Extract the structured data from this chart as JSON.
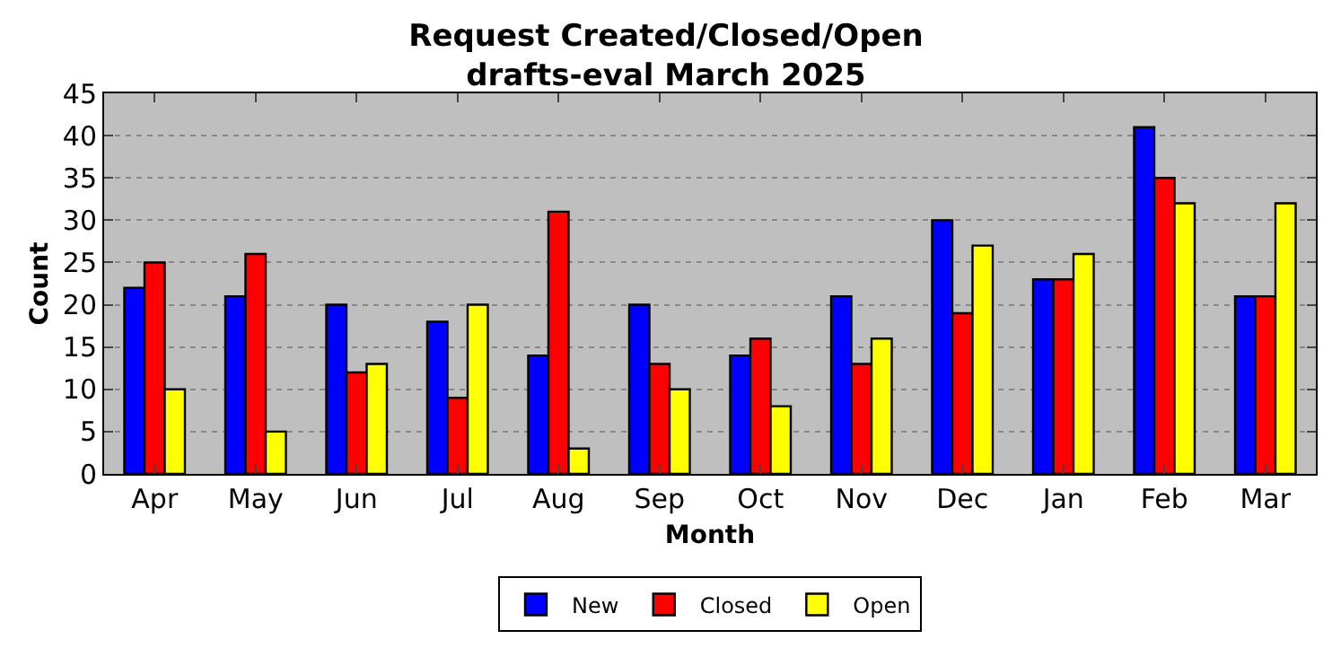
{
  "chart_data": {
    "type": "bar",
    "title": "Request Created/Closed/Open\ndrafts-eval March 2025",
    "xlabel": "Month",
    "ylabel": "Count",
    "categories": [
      "Apr",
      "May",
      "Jun",
      "Jul",
      "Aug",
      "Sep",
      "Oct",
      "Nov",
      "Dec",
      "Jan",
      "Feb",
      "Mar"
    ],
    "series": [
      {
        "name": "New",
        "color": "#0000ff",
        "values": [
          22,
          21,
          20,
          18,
          14,
          20,
          14,
          21,
          30,
          23,
          41,
          21
        ]
      },
      {
        "name": "Closed",
        "color": "#ff0000",
        "values": [
          25,
          26,
          12,
          9,
          31,
          13,
          16,
          13,
          19,
          23,
          35,
          21
        ]
      },
      {
        "name": "Open",
        "color": "#ffff00",
        "values": [
          10,
          5,
          13,
          20,
          3,
          10,
          8,
          16,
          27,
          26,
          32,
          32
        ]
      }
    ],
    "ylim": [
      0,
      45
    ],
    "yticks": [
      0,
      5,
      10,
      15,
      20,
      25,
      30,
      35,
      40,
      45
    ],
    "grid": "y",
    "legend": "bottom"
  }
}
